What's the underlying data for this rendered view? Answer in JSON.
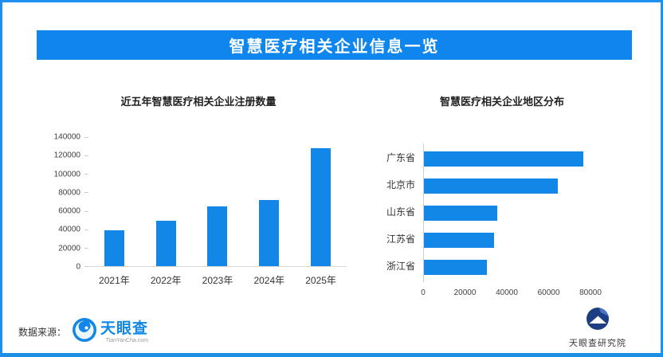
{
  "page": {
    "title": "智慧医疗相关企业信息一览",
    "source_label": "数据来源：",
    "source_logo_text": "天眼查",
    "source_logo_sub": "TianYanCha.com",
    "footer_logo_text": "天眼查研究院"
  },
  "colors": {
    "accent_blue": "#1287e8",
    "banner_blue": "#0e86ee",
    "border_blue": "#1e90f2",
    "bottom_bar_blue": "#1d8fe2",
    "logo_navy": "#1d3e82",
    "axis_gray": "#d9d9d9"
  },
  "chart_data": [
    {
      "type": "bar",
      "orientation": "vertical",
      "title": "近五年智慧医疗相关企业注册数量",
      "categories": [
        "2021年",
        "2022年",
        "2023年",
        "2024年",
        "2025年"
      ],
      "values": [
        39000,
        49000,
        65000,
        72000,
        128000
      ],
      "ylabel": "",
      "xlabel": "",
      "ylim": [
        0,
        140000
      ],
      "yticks": [
        0,
        20000,
        40000,
        60000,
        80000,
        100000,
        120000,
        140000
      ],
      "bar_color": "#1287e8",
      "grid": false,
      "legend": "none"
    },
    {
      "type": "bar",
      "orientation": "horizontal",
      "title": "智慧医疗相关企业地区分布",
      "categories": [
        "广东省",
        "北京市",
        "山东省",
        "江苏省",
        "浙江省"
      ],
      "values": [
        76000,
        64000,
        35000,
        33500,
        30000
      ],
      "ylabel": "",
      "xlabel": "",
      "xlim": [
        0,
        80000
      ],
      "xticks": [
        0,
        20000,
        40000,
        60000,
        80000
      ],
      "bar_color": "#1287e8",
      "grid": false,
      "legend": "none"
    }
  ]
}
